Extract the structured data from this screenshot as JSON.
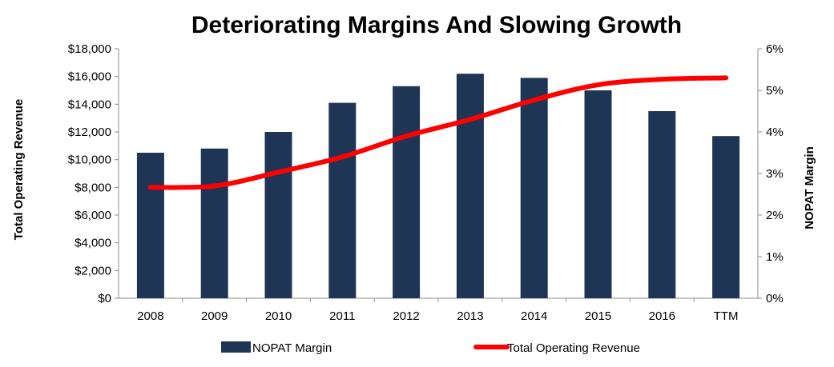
{
  "chart_data": {
    "type": "bar",
    "title": "Deteriorating Margins And Slowing Growth",
    "categories": [
      "2008",
      "2009",
      "2010",
      "2011",
      "2012",
      "2013",
      "2014",
      "2015",
      "2016",
      "TTM"
    ],
    "series": [
      {
        "name": "NOPAT Margin",
        "type": "bar",
        "axis": "right",
        "color": "#1f3556",
        "values": [
          3.5,
          3.6,
          4.0,
          4.7,
          5.1,
          5.4,
          5.3,
          5.0,
          4.5,
          3.9
        ]
      },
      {
        "name": "Total Operating Revenue",
        "type": "line",
        "axis": "left",
        "color": "#ff0000",
        "values": [
          8000,
          8100,
          9100,
          10200,
          11700,
          12900,
          14300,
          15400,
          15800,
          15900
        ]
      }
    ],
    "y_left": {
      "label": "Total Operating Revenue",
      "min": 0,
      "max": 18000,
      "ticks": [
        "$0",
        "$2,000",
        "$4,000",
        "$6,000",
        "$8,000",
        "$10,000",
        "$12,000",
        "$14,000",
        "$16,000",
        "$18,000"
      ]
    },
    "y_right": {
      "label": "NOPAT Margin",
      "min": 0,
      "max": 6,
      "ticks": [
        "0%",
        "1%",
        "2%",
        "3%",
        "4%",
        "5%",
        "6%"
      ]
    },
    "grid": false,
    "legend_position": "bottom"
  }
}
